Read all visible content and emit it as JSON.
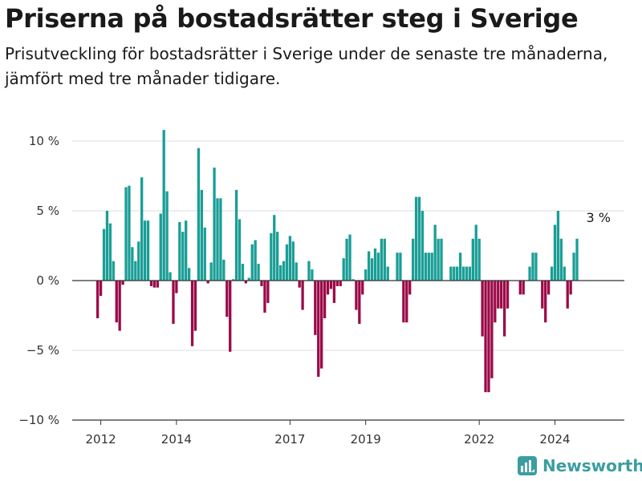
{
  "header": {
    "title": "Priserna på bostadsrätter steg i Sverige",
    "subtitle": "Prisutveckling för bostadsrätter i Sverige under de senaste tre månaderna, jämfört med tre månader tidigare."
  },
  "brand": {
    "name": "Newsworthy",
    "icon": "newsworthy-chart-logo-icon"
  },
  "colors": {
    "positive": "#1a9e96",
    "negative": "#9b0a48",
    "grid": "#dddddd",
    "zero_line": "#333333",
    "brand": "#3a9ea0"
  },
  "chart_data": {
    "type": "bar",
    "title": "Priserna på bostadsrätter steg i Sverige",
    "subtitle": "Prisutveckling för bostadsrätter i Sverige under de senaste tre månaderna, jämfört med tre månader tidigare.",
    "xlabel": "",
    "ylabel": "",
    "x_start": "2011-12",
    "x_end": "2025-03",
    "ylim": [
      -10,
      12
    ],
    "yticks": [
      10,
      5,
      0,
      -5,
      -10
    ],
    "ytick_labels": [
      "10 %",
      "5 %",
      "0 %",
      "−5 %",
      "−10 %"
    ],
    "xticks": [
      2012,
      2014,
      2017,
      2019,
      2022,
      2024
    ],
    "xtick_labels": [
      "2012",
      "2014",
      "2017",
      "2019",
      "2022",
      "2024"
    ],
    "grid": true,
    "annotation": {
      "text": "3 %",
      "month": "2025-03",
      "value": 3
    },
    "series": [
      {
        "values": [
          -2.7,
          -1.1,
          3.7,
          5.0,
          4.1,
          1.4,
          -3.0,
          -3.6,
          -0.3,
          6.7,
          6.8,
          2.4,
          1.4,
          2.8,
          7.4,
          4.3,
          4.3,
          -0.4,
          -0.5,
          -0.5,
          4.8,
          10.8,
          6.4,
          0.6,
          -3.1,
          -0.9,
          4.2,
          3.5,
          4.3,
          0.9,
          -4.7,
          -3.6,
          9.5,
          6.5,
          3.8,
          -0.2,
          1.3,
          8.1,
          5.9,
          5.9,
          1.5,
          -2.6,
          -5.1,
          0.1,
          6.5,
          4.4,
          1.2,
          -0.2,
          0.2,
          2.6,
          2.9,
          1.2,
          -0.4,
          -2.3,
          -1.6,
          3.4,
          4.7,
          3.5,
          1.1,
          1.4,
          2.6,
          3.2,
          2.8,
          1.3,
          -0.5,
          -2.1,
          0.0,
          1.4,
          0.8,
          -3.9,
          -6.9,
          -6.3,
          -2.7,
          -1.0,
          -0.6,
          -1.6,
          -0.4,
          -0.4,
          1.6,
          3.0,
          3.3,
          0.1,
          -2.1,
          -3.1,
          -1.0,
          0.8,
          2.1,
          1.6,
          2.3,
          2.0,
          3.0,
          3.0,
          1.0,
          0.0,
          0.0,
          2.0,
          2.0,
          -3.0,
          -3.0,
          -1.0,
          3.0,
          6.0,
          6.0,
          5.0,
          2.0,
          2.0,
          2.0,
          4.0,
          3.0,
          3.0,
          0.0,
          0.0,
          1.0,
          1.0,
          1.0,
          2.0,
          1.0,
          1.0,
          1.0,
          3.0,
          4.0,
          3.0,
          -4.0,
          -8.0,
          -8.0,
          -7.0,
          -3.0,
          -2.0,
          -2.0,
          -4.0,
          -2.0,
          0.0,
          0.0,
          0.0,
          -1.0,
          -1.0,
          0.0,
          1.0,
          2.0,
          2.0,
          0.0,
          -2.0,
          -3.0,
          -1.0,
          1.0,
          4.0,
          5.0,
          3.0,
          1.0,
          -2.0,
          -1.0,
          2.0,
          3.0
        ]
      }
    ]
  }
}
